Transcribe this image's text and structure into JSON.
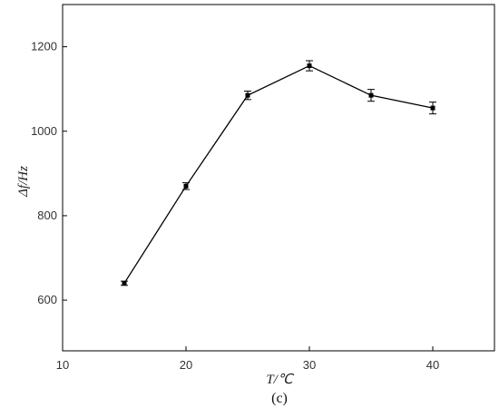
{
  "chart_data": {
    "type": "line",
    "xlabel": "T/℃",
    "ylabel": "Δf/Hz",
    "caption": "(c)",
    "xlim": [
      10,
      45
    ],
    "ylim": [
      480,
      1300
    ],
    "x_ticks": [
      10,
      20,
      30,
      40
    ],
    "x_ticks_labels": [
      "10",
      "20",
      "30",
      "40"
    ],
    "y_ticks": [
      600,
      800,
      1000,
      1200
    ],
    "y_ticks_labels": [
      "600",
      "800",
      "1000",
      "1200"
    ],
    "grid": false,
    "series": [
      {
        "x": [
          15,
          20,
          25,
          30,
          35,
          40
        ],
        "y": [
          640,
          870,
          1085,
          1155,
          1085,
          1055
        ],
        "error": [
          5,
          8,
          10,
          12,
          14,
          14
        ],
        "color": "#000000",
        "marker": "square"
      }
    ]
  }
}
